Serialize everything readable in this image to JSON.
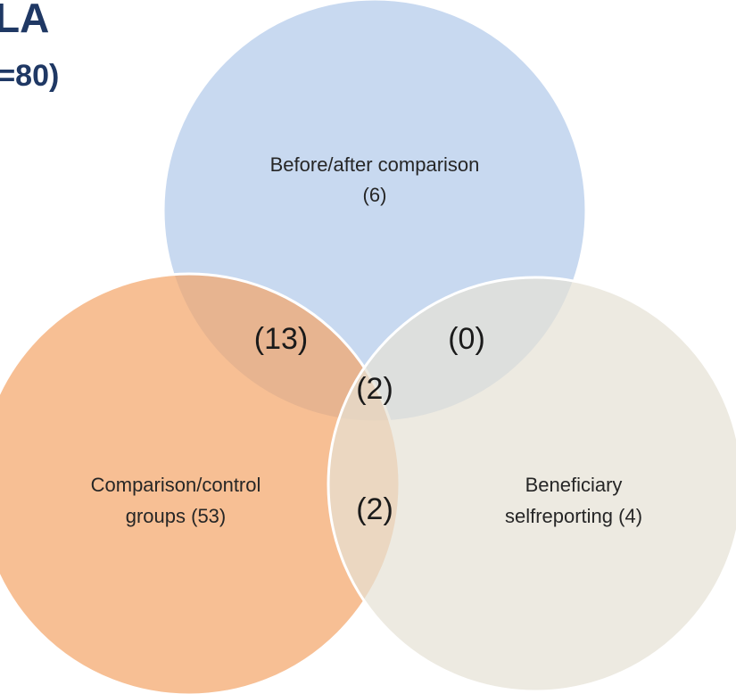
{
  "header": {
    "title": "LA",
    "subtitle": "(=80)"
  },
  "sets": [
    {
      "lines": [
        "Before/after comparison",
        "(6)"
      ]
    },
    {
      "lines": [
        "Comparison/control",
        "groups (53)"
      ]
    },
    {
      "lines": [
        "Beneficiary",
        "selfreporting (4)"
      ]
    }
  ],
  "intersections": [
    {
      "label": "(13)"
    },
    {
      "label": "(0)"
    },
    {
      "label": "(2)"
    },
    {
      "label": "(2)"
    }
  ]
}
